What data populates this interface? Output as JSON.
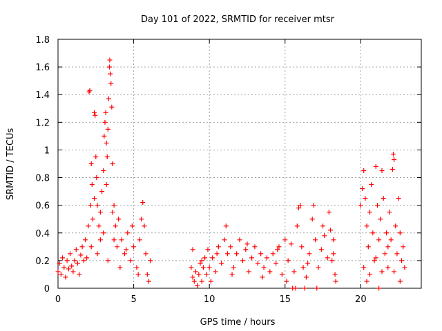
{
  "chart_data": {
    "type": "scatter",
    "title": "Day 101 of 2022, SRMTID for receiver mtsr",
    "xlabel": "GPS time / hours",
    "ylabel": "SRMTID / TECUs",
    "xlim": [
      0,
      24
    ],
    "ylim": [
      0,
      1.8
    ],
    "xticks": [
      0,
      5,
      10,
      15,
      20
    ],
    "xtick_labels": [
      "0",
      "5",
      "10",
      "15",
      "20"
    ],
    "yticks": [
      0,
      0.2,
      0.4,
      0.6,
      0.8,
      1,
      1.2,
      1.4,
      1.6,
      1.8
    ],
    "ytick_labels": [
      "0",
      "0.2",
      "0.4",
      "0.6",
      "0.8",
      "1",
      "1.2",
      "1.4",
      "1.6",
      "1.8"
    ],
    "grid": true,
    "marker": "+",
    "color": "#ff0000",
    "series": [
      {
        "name": "SRMTID",
        "points": [
          [
            0.0,
            0.12
          ],
          [
            0.1,
            0.18
          ],
          [
            0.2,
            0.1
          ],
          [
            0.3,
            0.22
          ],
          [
            0.4,
            0.15
          ],
          [
            0.5,
            0.08
          ],
          [
            0.6,
            0.2
          ],
          [
            0.7,
            0.14
          ],
          [
            0.8,
            0.25
          ],
          [
            0.9,
            0.16
          ],
          [
            1.0,
            0.12
          ],
          [
            1.1,
            0.2
          ],
          [
            1.2,
            0.28
          ],
          [
            1.3,
            0.18
          ],
          [
            1.4,
            0.1
          ],
          [
            1.5,
            0.24
          ],
          [
            1.6,
            0.3
          ],
          [
            1.7,
            0.2
          ],
          [
            1.8,
            0.35
          ],
          [
            1.9,
            0.22
          ],
          [
            2.0,
            0.45
          ],
          [
            2.05,
            1.42
          ],
          [
            2.1,
            1.43
          ],
          [
            2.15,
            0.6
          ],
          [
            2.2,
            0.9
          ],
          [
            2.25,
            0.75
          ],
          [
            2.3,
            0.5
          ],
          [
            2.4,
            1.27
          ],
          [
            2.45,
            1.25
          ],
          [
            2.5,
            0.95
          ],
          [
            2.55,
            0.8
          ],
          [
            2.6,
            0.6
          ],
          [
            2.7,
            0.45
          ],
          [
            2.8,
            0.35
          ],
          [
            2.9,
            0.7
          ],
          [
            3.0,
            0.85
          ],
          [
            3.05,
            1.1
          ],
          [
            3.1,
            1.2
          ],
          [
            3.15,
            1.27
          ],
          [
            3.2,
            1.05
          ],
          [
            3.25,
            0.95
          ],
          [
            3.3,
            1.15
          ],
          [
            3.35,
            1.37
          ],
          [
            3.4,
            1.6
          ],
          [
            3.42,
            1.65
          ],
          [
            3.45,
            1.55
          ],
          [
            3.5,
            1.48
          ],
          [
            3.55,
            1.31
          ],
          [
            3.6,
            0.9
          ],
          [
            3.7,
            0.6
          ],
          [
            3.8,
            0.45
          ],
          [
            3.9,
            0.3
          ],
          [
            4.0,
            0.5
          ],
          [
            4.2,
            0.35
          ],
          [
            4.4,
            0.25
          ],
          [
            4.6,
            0.4
          ],
          [
            4.8,
            0.2
          ],
          [
            5.0,
            0.3
          ],
          [
            5.2,
            0.15
          ],
          [
            5.4,
            0.35
          ],
          [
            5.5,
            0.5
          ],
          [
            5.6,
            0.62
          ],
          [
            5.7,
            0.45
          ],
          [
            5.8,
            0.25
          ],
          [
            5.9,
            0.1
          ],
          [
            6.0,
            0.05
          ],
          [
            6.1,
            0.2
          ],
          [
            2.2,
            0.3
          ],
          [
            2.6,
            0.25
          ],
          [
            3.0,
            0.4
          ],
          [
            3.3,
            0.2
          ],
          [
            3.7,
            0.35
          ],
          [
            4.1,
            0.15
          ],
          [
            4.5,
            0.28
          ],
          [
            4.9,
            0.45
          ],
          [
            5.3,
            0.1
          ],
          [
            2.8,
            0.55
          ],
          [
            3.2,
            0.75
          ],
          [
            3.6,
            0.55
          ],
          [
            2.4,
            0.65
          ],
          [
            8.8,
            0.15
          ],
          [
            8.9,
            0.28
          ],
          [
            9.0,
            0.05
          ],
          [
            9.1,
            0.12
          ],
          [
            9.2,
            0.02
          ],
          [
            9.3,
            0.1
          ],
          [
            9.4,
            0.18
          ],
          [
            9.5,
            0.05
          ],
          [
            9.6,
            0.15
          ],
          [
            9.7,
            0.22
          ],
          [
            9.8,
            0.1
          ],
          [
            9.9,
            0.28
          ],
          [
            10.0,
            0.15
          ],
          [
            10.2,
            0.22
          ],
          [
            10.4,
            0.12
          ],
          [
            10.6,
            0.3
          ],
          [
            10.8,
            0.18
          ],
          [
            11.0,
            0.35
          ],
          [
            11.1,
            0.45
          ],
          [
            11.2,
            0.25
          ],
          [
            11.4,
            0.3
          ],
          [
            11.6,
            0.15
          ],
          [
            11.8,
            0.25
          ],
          [
            12.0,
            0.35
          ],
          [
            12.2,
            0.2
          ],
          [
            12.4,
            0.28
          ],
          [
            12.6,
            0.12
          ],
          [
            12.8,
            0.22
          ],
          [
            13.0,
            0.3
          ],
          [
            13.2,
            0.18
          ],
          [
            13.4,
            0.25
          ],
          [
            13.6,
            0.15
          ],
          [
            13.8,
            0.22
          ],
          [
            14.0,
            0.12
          ],
          [
            14.2,
            0.25
          ],
          [
            14.4,
            0.18
          ],
          [
            14.6,
            0.3
          ],
          [
            14.8,
            0.1
          ],
          [
            15.0,
            0.35
          ],
          [
            15.1,
            0.05
          ],
          [
            15.2,
            0.2
          ],
          [
            15.4,
            0.32
          ],
          [
            15.6,
            0.12
          ],
          [
            15.7,
            0.0
          ],
          [
            15.8,
            0.45
          ],
          [
            15.9,
            0.58
          ],
          [
            16.0,
            0.6
          ],
          [
            16.1,
            0.3
          ],
          [
            16.2,
            0.15
          ],
          [
            16.4,
            0.08
          ],
          [
            16.6,
            0.25
          ],
          [
            16.8,
            0.5
          ],
          [
            16.9,
            0.6
          ],
          [
            17.0,
            0.35
          ],
          [
            17.2,
            0.15
          ],
          [
            17.4,
            0.28
          ],
          [
            17.6,
            0.38
          ],
          [
            17.8,
            0.22
          ],
          [
            17.9,
            0.55
          ],
          [
            18.0,
            0.42
          ],
          [
            18.1,
            0.2
          ],
          [
            18.2,
            0.35
          ],
          [
            18.3,
            0.1
          ],
          [
            18.35,
            0.05
          ],
          [
            8.9,
            0.08
          ],
          [
            9.5,
            0.2
          ],
          [
            10.1,
            0.05
          ],
          [
            10.5,
            0.25
          ],
          [
            11.5,
            0.1
          ],
          [
            12.5,
            0.32
          ],
          [
            13.5,
            0.08
          ],
          [
            14.5,
            0.28
          ],
          [
            16.5,
            0.18
          ],
          [
            17.5,
            0.45
          ],
          [
            18.2,
            0.25
          ],
          [
            16.3,
            0.0
          ],
          [
            15.5,
            0.0
          ],
          [
            17.1,
            0.0
          ],
          [
            20.0,
            0.6
          ],
          [
            20.1,
            0.72
          ],
          [
            20.2,
            0.85
          ],
          [
            20.3,
            0.65
          ],
          [
            20.4,
            0.45
          ],
          [
            20.5,
            0.3
          ],
          [
            20.6,
            0.55
          ],
          [
            20.7,
            0.75
          ],
          [
            20.8,
            0.4
          ],
          [
            20.9,
            0.2
          ],
          [
            21.0,
            0.88
          ],
          [
            21.1,
            0.6
          ],
          [
            21.2,
            0.35
          ],
          [
            21.3,
            0.5
          ],
          [
            21.4,
            0.85
          ],
          [
            21.5,
            0.65
          ],
          [
            21.6,
            0.25
          ],
          [
            21.7,
            0.4
          ],
          [
            21.8,
            0.15
          ],
          [
            21.9,
            0.55
          ],
          [
            22.0,
            0.35
          ],
          [
            22.1,
            0.86
          ],
          [
            22.15,
            0.97
          ],
          [
            22.2,
            0.93
          ],
          [
            22.3,
            0.45
          ],
          [
            22.4,
            0.25
          ],
          [
            22.5,
            0.65
          ],
          [
            22.6,
            0.4
          ],
          [
            22.7,
            0.2
          ],
          [
            22.8,
            0.3
          ],
          [
            22.9,
            0.15
          ],
          [
            20.2,
            0.15
          ],
          [
            20.6,
            0.1
          ],
          [
            21.0,
            0.22
          ],
          [
            21.4,
            0.12
          ],
          [
            21.8,
            0.3
          ],
          [
            22.2,
            0.12
          ],
          [
            22.6,
            0.05
          ],
          [
            20.4,
            0.05
          ],
          [
            21.2,
            0.0
          ]
        ]
      }
    ]
  }
}
